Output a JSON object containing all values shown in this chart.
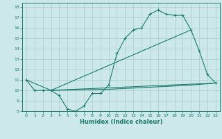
{
  "background_color": "#cce8e8",
  "grid_color": "#aacccc",
  "line_color": "#1a7a6e",
  "xlabel": "Humidex (Indice chaleur)",
  "xlim": [
    -0.5,
    23.5
  ],
  "ylim": [
    8,
    18.4
  ],
  "yticks": [
    8,
    9,
    10,
    11,
    12,
    13,
    14,
    15,
    16,
    17,
    18
  ],
  "xticks": [
    0,
    1,
    2,
    3,
    4,
    5,
    6,
    7,
    8,
    9,
    10,
    11,
    12,
    13,
    14,
    15,
    16,
    17,
    18,
    19,
    20,
    21,
    22,
    23
  ],
  "line1_x": [
    0,
    1,
    2,
    3,
    4,
    5,
    6,
    7,
    8,
    9,
    10,
    11,
    12,
    13,
    14,
    15,
    16,
    17,
    18,
    19,
    20,
    21,
    22,
    23
  ],
  "line1_y": [
    11,
    10,
    10,
    10,
    9.5,
    8.2,
    8.0,
    8.5,
    9.7,
    9.7,
    10.5,
    13.5,
    15.0,
    15.8,
    16.0,
    17.3,
    17.7,
    17.3,
    17.2,
    17.2,
    15.8,
    13.8,
    11.5,
    10.7
  ],
  "line2_x": [
    0,
    3,
    23
  ],
  "line2_y": [
    11,
    10,
    10.7
  ],
  "line3_x": [
    3,
    20
  ],
  "line3_y": [
    10,
    15.8
  ],
  "line4_x": [
    3,
    10,
    20,
    23
  ],
  "line4_y": [
    10,
    10.1,
    10.5,
    10.7
  ],
  "xlabel_fontsize": 6,
  "tick_fontsize": 4.5,
  "linewidth": 0.8,
  "marker_size": 3
}
